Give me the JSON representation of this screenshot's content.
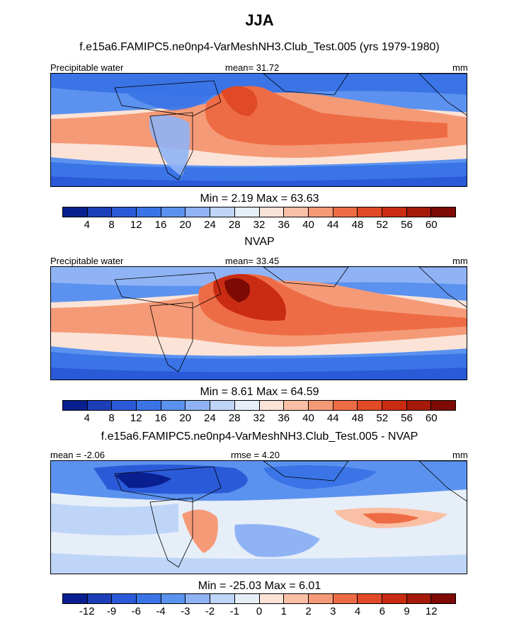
{
  "main_title": "JJA",
  "colors": {
    "seq": [
      "#0a1f8f",
      "#1c3fb8",
      "#2b5ad8",
      "#3a74e6",
      "#5b92ef",
      "#8fb3f5",
      "#bfd5f8",
      "#e6eef8",
      "#fbe3d7",
      "#f9c0a5",
      "#f59a77",
      "#ee6c45",
      "#e04a26",
      "#c92c12",
      "#a61a0a",
      "#7d0a05"
    ]
  },
  "panels": [
    {
      "title": "f.e15a6.FAMIPC5.ne0np4-VarMeshNH3.Club_Test.005 (yrs 1979-1980)",
      "left_label": "Precipitable water",
      "center_label": "mean=  31.72",
      "right_label": "mm",
      "minmax": "Min =   2.19 Max =  63.63",
      "colorbar_labels": [
        "4",
        "8",
        "12",
        "16",
        "20",
        "24",
        "28",
        "32",
        "36",
        "40",
        "44",
        "48",
        "52",
        "56",
        "60"
      ]
    },
    {
      "title": "NVAP",
      "left_label": "Precipitable water",
      "center_label": "mean=  33.45",
      "right_label": "mm",
      "minmax": "Min =   8.61 Max =  64.59",
      "colorbar_labels": [
        "4",
        "8",
        "12",
        "16",
        "20",
        "24",
        "28",
        "32",
        "36",
        "40",
        "44",
        "48",
        "52",
        "56",
        "60"
      ]
    },
    {
      "title": "f.e15a6.FAMIPC5.ne0np4-VarMeshNH3.Club_Test.005 - NVAP",
      "left_label": "mean =  -2.06",
      "center_label": "rmse =   4.20",
      "right_label": "mm",
      "minmax": "Min = -25.03 Max =   6.01",
      "colorbar_labels": [
        "-12",
        "-9",
        "-6",
        "-4",
        "-3",
        "-2",
        "-1",
        "0",
        "1",
        "2",
        "3",
        "4",
        "6",
        "9",
        "12"
      ]
    }
  ]
}
